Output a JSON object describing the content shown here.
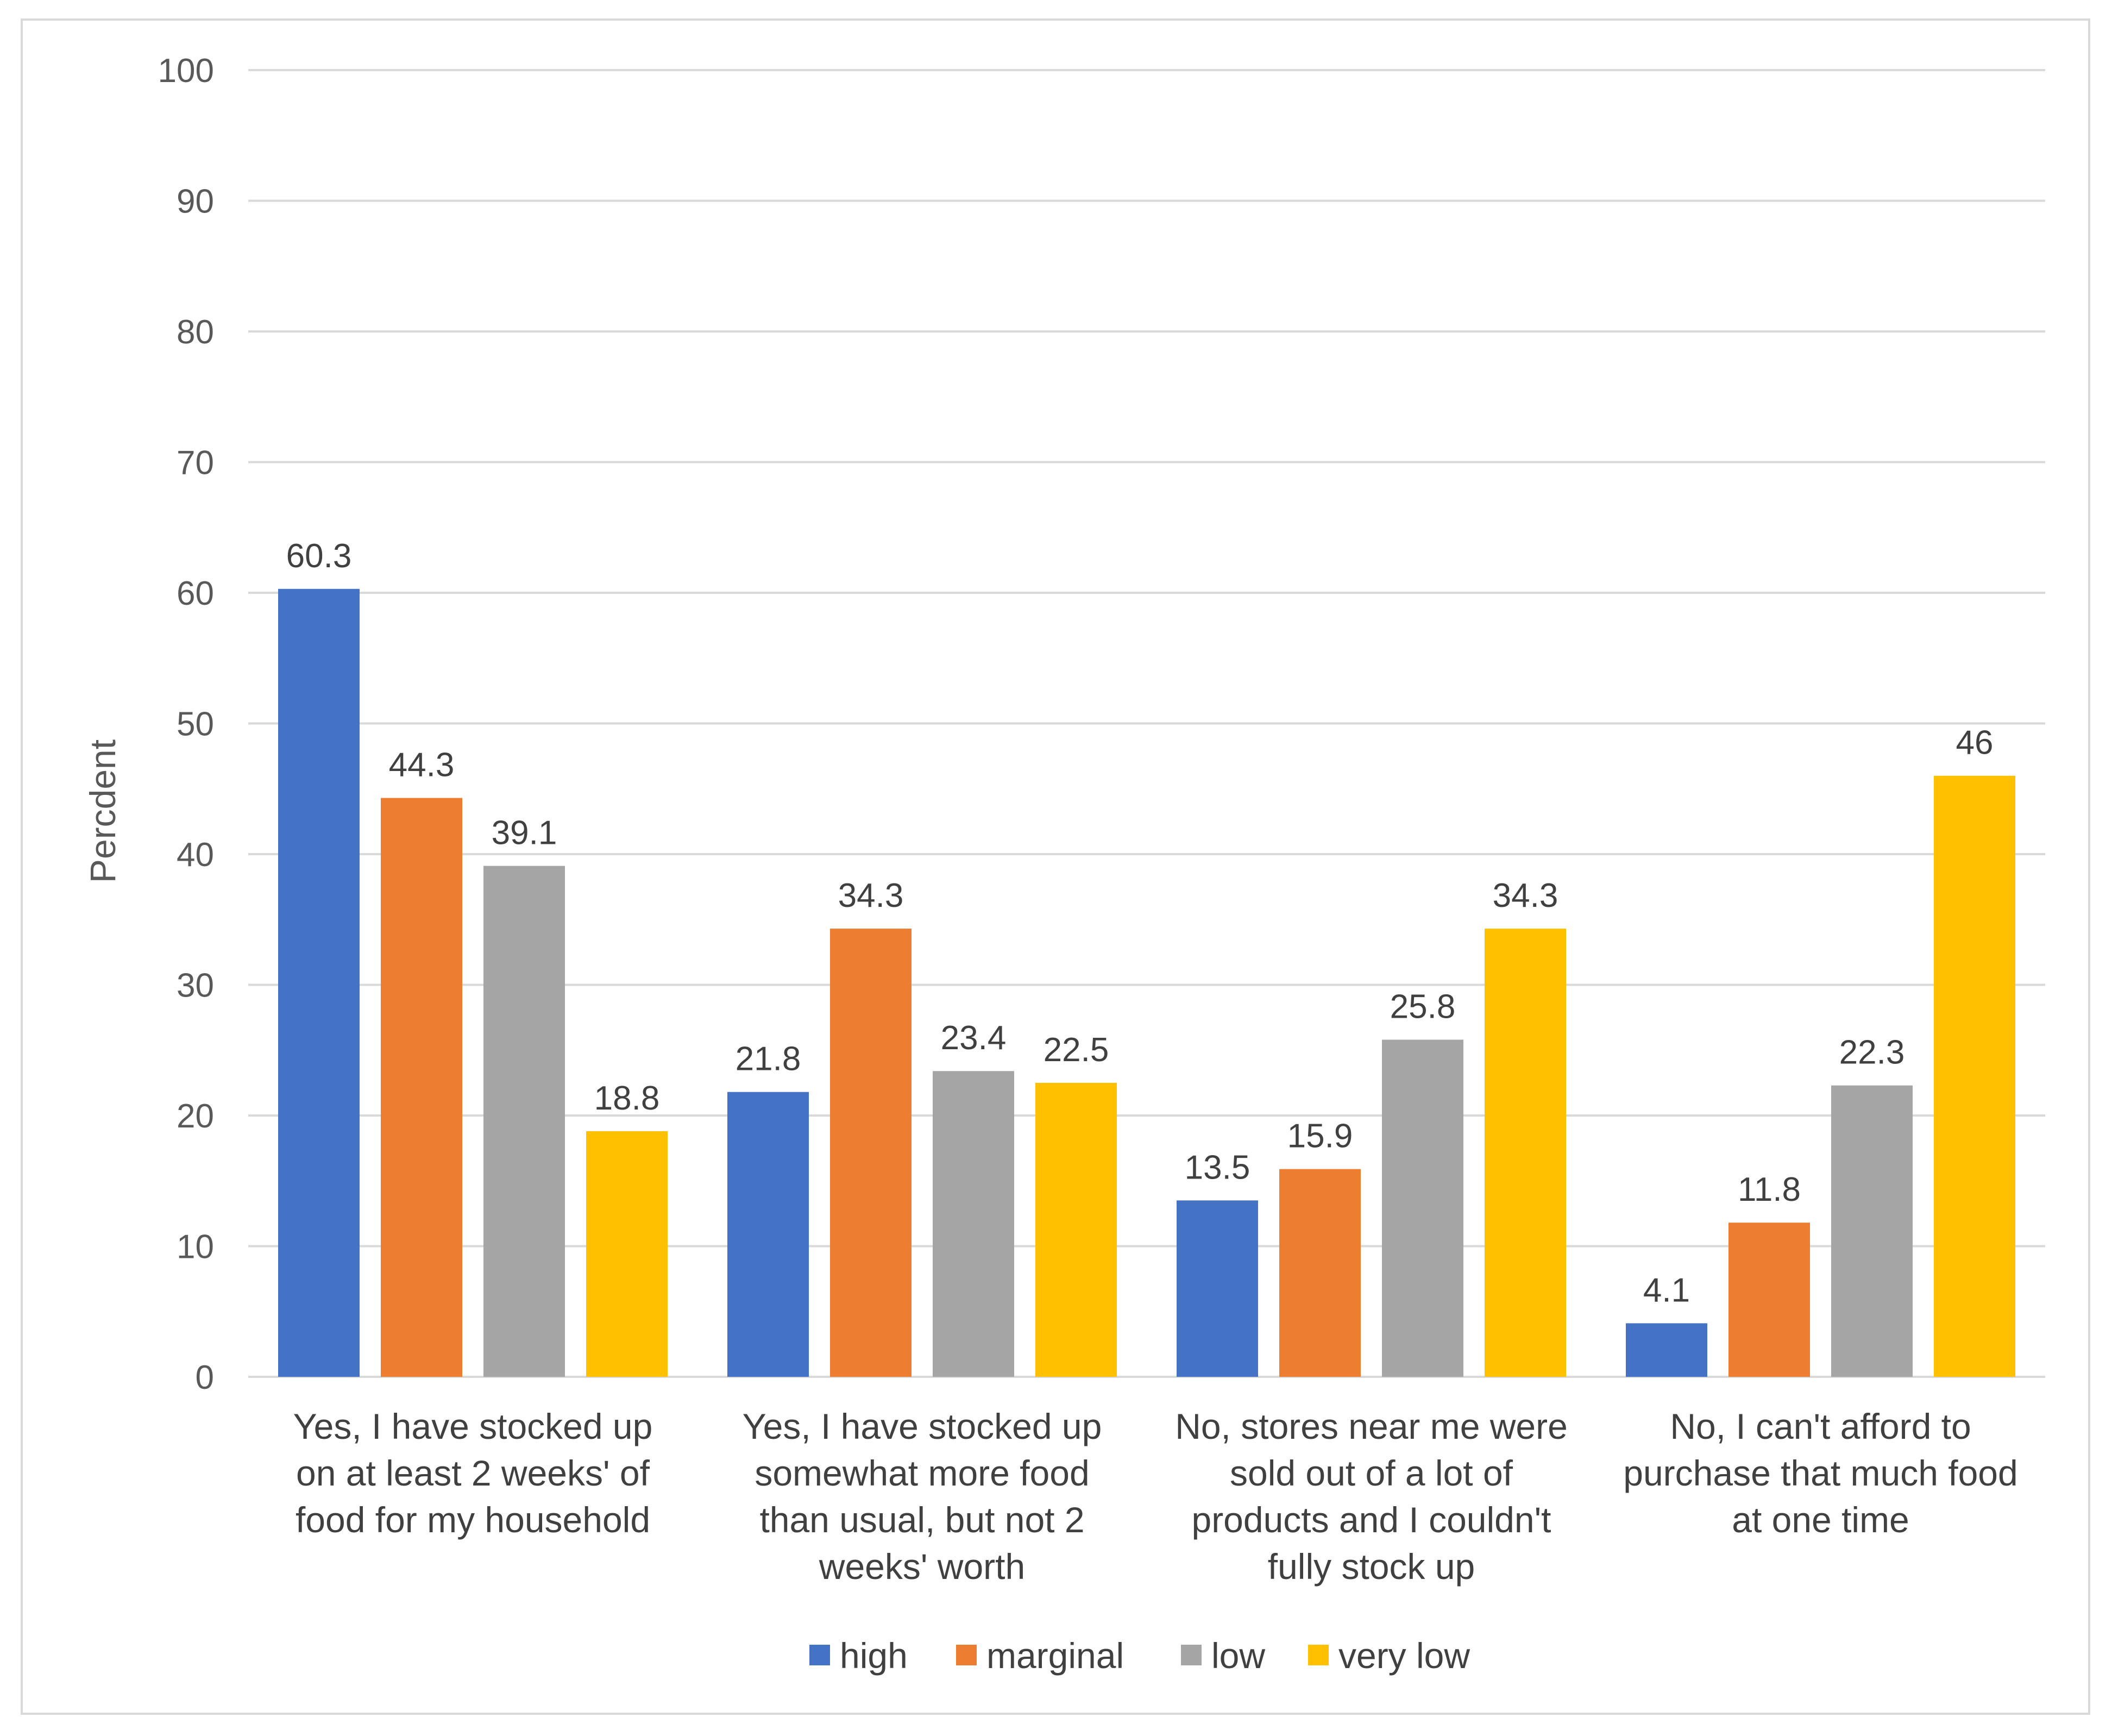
{
  "chart_data": {
    "type": "bar",
    "title": "",
    "xlabel": "",
    "ylabel": "Percdent",
    "ylim": [
      0,
      100
    ],
    "yticks": [
      "0",
      "10",
      "20",
      "30",
      "40",
      "50",
      "60",
      "70",
      "80",
      "90",
      "100"
    ],
    "grid": true,
    "legend_position": "bottom",
    "categories": [
      [
        "Yes, I have stocked up",
        "on at least 2 weeks' of",
        "food for my household"
      ],
      [
        "Yes, I have stocked up",
        "somewhat more food",
        "than usual, but not 2",
        "weeks' worth"
      ],
      [
        "No, stores near me were",
        "sold out of a lot of",
        "products and I couldn't",
        "fully stock up"
      ],
      [
        "No, I can't afford to",
        "purchase that much food",
        "at one time"
      ]
    ],
    "series": [
      {
        "name": "high",
        "color": "#4472c4",
        "values": [
          60.3,
          21.8,
          13.5,
          4.1
        ],
        "labels": [
          "60.3",
          "21.8",
          "13.5",
          "4.1"
        ]
      },
      {
        "name": "marginal",
        "color": "#ed7d31",
        "values": [
          44.3,
          34.3,
          15.9,
          11.8
        ],
        "labels": [
          "44.3",
          "34.3",
          "15.9",
          "11.8"
        ]
      },
      {
        "name": "low",
        "color": "#a5a5a5",
        "values": [
          39.1,
          23.4,
          25.8,
          22.3
        ],
        "labels": [
          "39.1",
          "23.4",
          "25.8",
          "22.3"
        ]
      },
      {
        "name": "very low",
        "color": "#ffc000",
        "values": [
          18.8,
          22.5,
          34.3,
          46
        ],
        "labels": [
          "18.8",
          "22.5",
          "34.3",
          "46"
        ]
      }
    ],
    "colors": {
      "grid": "#d9d9d9",
      "axis": "#d9d9d9"
    }
  }
}
